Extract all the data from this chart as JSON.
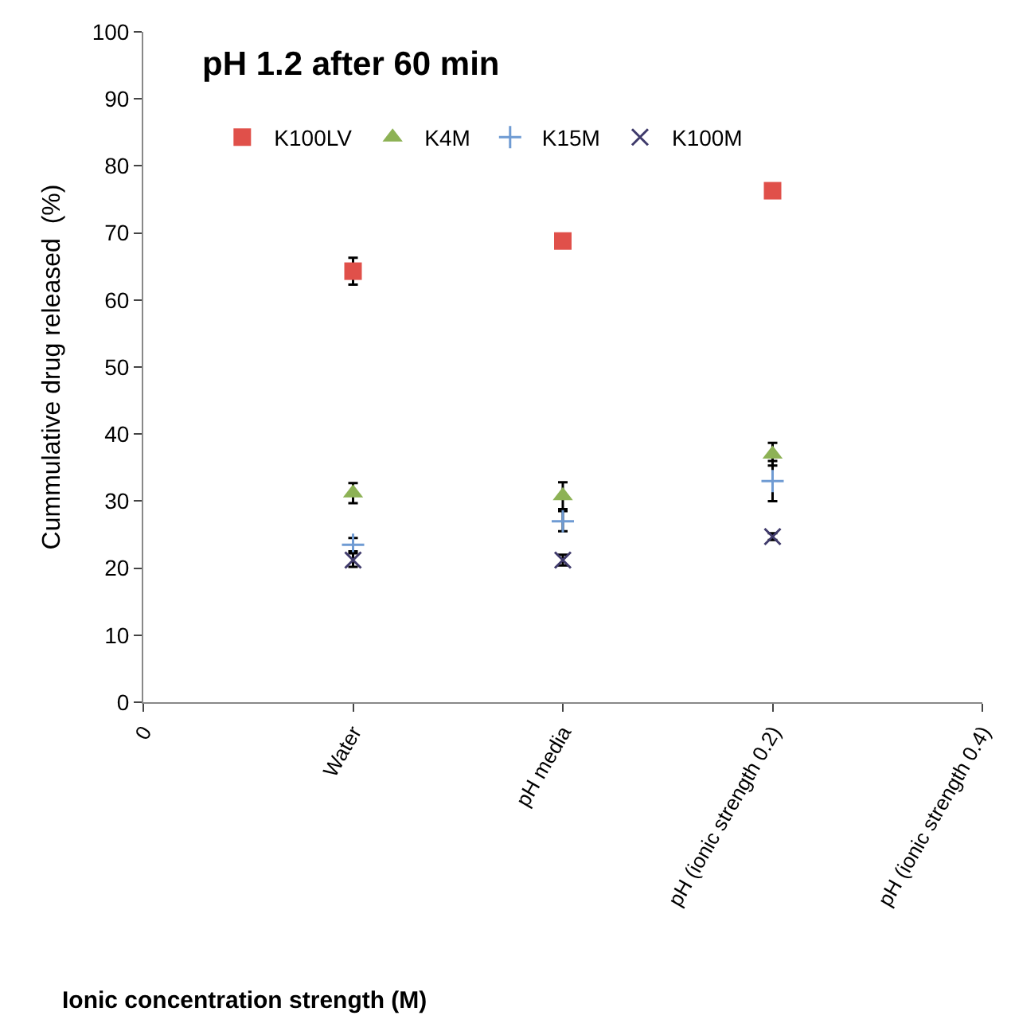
{
  "chart_data": {
    "type": "scatter",
    "title": "pH 1.2 after 60 min",
    "xlabel": "Ionic concentration strength (M)",
    "ylabel": "Cummulative drug released  (%)",
    "categories": [
      "0",
      "Water",
      "pH media",
      "pH (ionic strength 0.2)",
      "pH (ionic strength 0.4)"
    ],
    "ylim": [
      0,
      100
    ],
    "yticks": [
      0,
      10,
      20,
      30,
      40,
      50,
      60,
      70,
      80,
      90,
      100
    ],
    "grid": false,
    "legend": "top left",
    "series": [
      {
        "name": "K100LV",
        "color": "#e0504a",
        "marker": "square",
        "values": [
          null,
          64.3,
          68.8,
          76.3,
          null
        ],
        "errors": [
          null,
          2,
          null,
          null,
          null
        ]
      },
      {
        "name": "K4M",
        "color": "#8db255",
        "marker": "triangle",
        "values": [
          null,
          31.2,
          30.8,
          37,
          null
        ],
        "errors": [
          null,
          1.5,
          2,
          1.7,
          null
        ]
      },
      {
        "name": "K15M",
        "color": "#6f9bd3",
        "marker": "cross",
        "values": [
          null,
          23.5,
          27,
          33,
          null
        ],
        "errors": [
          null,
          1,
          1.5,
          3,
          null
        ]
      },
      {
        "name": "K100M",
        "color": "#3f3a6b",
        "marker": "x",
        "values": [
          null,
          21.2,
          21.2,
          24.7,
          null
        ],
        "errors": [
          null,
          1,
          0.8,
          0.5,
          null
        ]
      }
    ]
  }
}
